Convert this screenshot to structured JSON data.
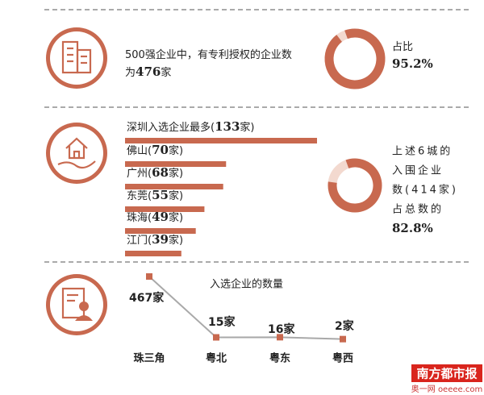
{
  "chart_data": [
    {
      "type": "donut",
      "annotation": [
        "500强企业中，有专利授权的企业数",
        "为",
        "476",
        "家"
      ],
      "label": "占比",
      "values": [
        95.2
      ],
      "value_labels": [
        "95.2%"
      ],
      "color": "#c8694f",
      "track_color": "#f3d9cf"
    },
    {
      "type": "hbar",
      "categories": [
        "深圳入选企业最多",
        "佛山",
        "广州",
        "东莞",
        "珠海",
        "江门"
      ],
      "label_open": "(",
      "label_close": "家)",
      "values": [
        133,
        70,
        68,
        55,
        49,
        39
      ],
      "color": "#c8694f"
    },
    {
      "type": "donut",
      "annotation": [
        "上述6城的",
        "入围企业",
        "数(414家)",
        "占总数的"
      ],
      "values": [
        82.8
      ],
      "value_labels": [
        "82.8%"
      ],
      "color": "#c8694f",
      "track_color": "#f3d9cf"
    },
    {
      "type": "line",
      "title": "入选企业的数量",
      "categories": [
        "珠三角",
        "粤北",
        "粤东",
        "粤西"
      ],
      "values": [
        467,
        15,
        16,
        2
      ],
      "value_labels": [
        "467家",
        "15家",
        "16家",
        "2家"
      ],
      "color": "#a9a9a9",
      "marker_color": "#c8694f"
    }
  ],
  "footer": {
    "logo": "南方都市报",
    "site": "奥一网 oeeee.com"
  }
}
